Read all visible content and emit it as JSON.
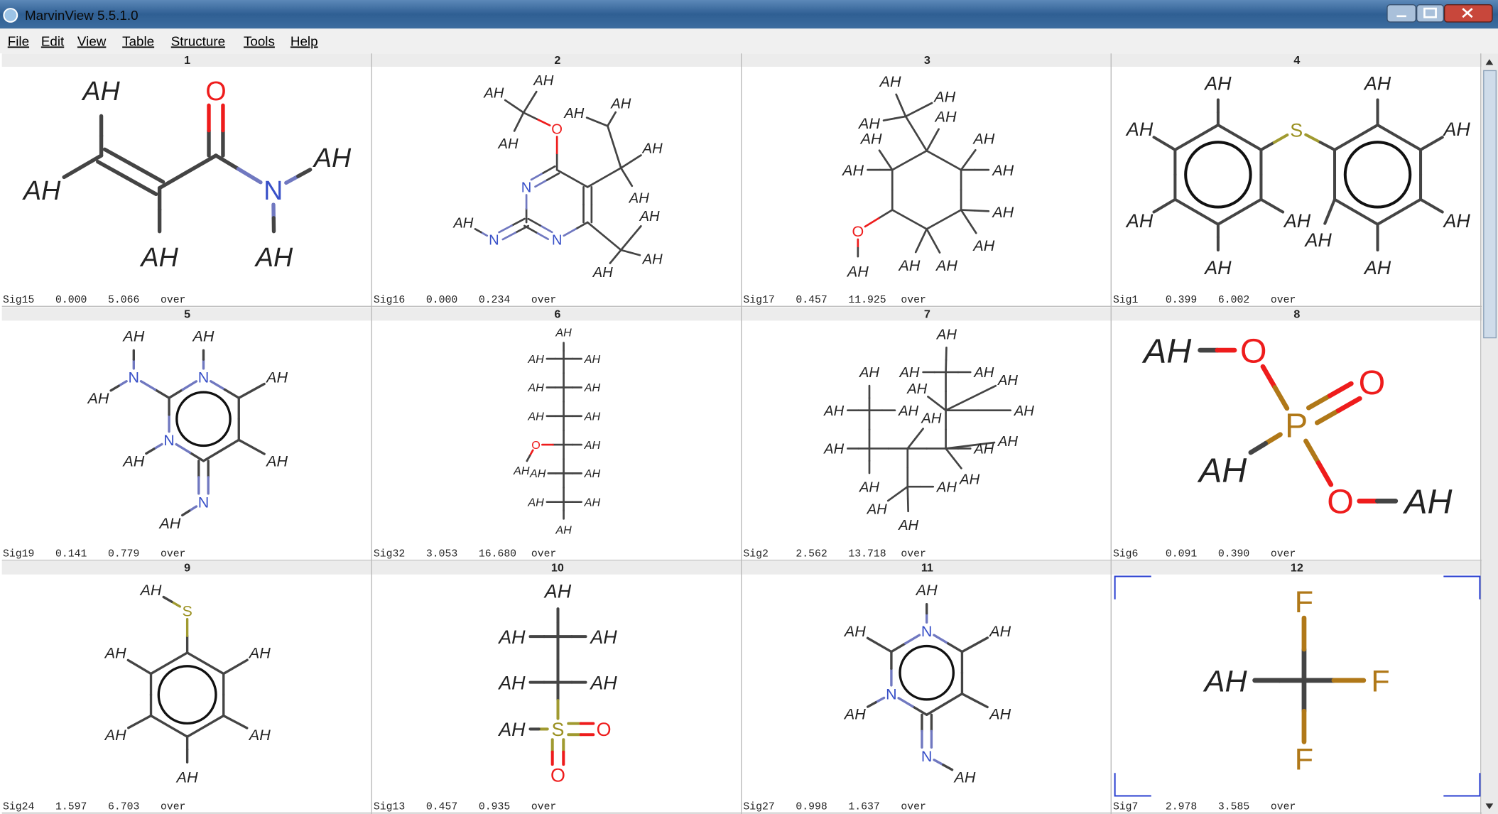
{
  "window": {
    "title": "MarvinView 5.5.1.0"
  },
  "menu": [
    "File",
    "Edit",
    "View",
    "Table",
    "Structure",
    "Tools",
    "Help"
  ],
  "cells": [
    {
      "number": 1,
      "atoms": [
        "AH",
        "O",
        "AH",
        "N",
        "AH",
        "AH",
        "AH"
      ],
      "footer": [
        "Sig15",
        "0.000",
        "5.066",
        "over"
      ]
    },
    {
      "number": 2,
      "atoms": [
        "O",
        "AH",
        "AH",
        "AH",
        "N",
        "N",
        "AH",
        "AH",
        "AH",
        "AH",
        "AH",
        "AH",
        "AH",
        "N",
        "AH"
      ],
      "footer": [
        "Sig16",
        "0.000",
        "0.234",
        "over"
      ]
    },
    {
      "number": 3,
      "atoms": [
        "AH",
        "AH",
        "AH",
        "AH",
        "AH",
        "AH",
        "AH",
        "AH",
        "AH",
        "AH",
        "AH",
        "AH",
        "O",
        "AH"
      ],
      "footer": [
        "Sig17",
        "0.457",
        "11.925",
        "over"
      ]
    },
    {
      "number": 4,
      "atoms": [
        "S",
        "AH",
        "AH",
        "AH",
        "AH",
        "AH",
        "AH",
        "AH",
        "AH",
        "AH",
        "AH"
      ],
      "footer": [
        "Sig1",
        "0.399",
        "6.002",
        "over"
      ]
    },
    {
      "number": 5,
      "atoms": [
        "AH",
        "N",
        "AH",
        "N",
        "AH",
        "AH",
        "AH",
        "N",
        "AH",
        "N",
        "AH"
      ],
      "footer": [
        "Sig19",
        "0.141",
        "0.779",
        "over"
      ]
    },
    {
      "number": 6,
      "atoms": [
        "AH",
        "AH",
        "AH",
        "AH",
        "AH",
        "AH",
        "AH",
        "O",
        "AH",
        "AH",
        "AH",
        "AH",
        "AH",
        "AH",
        "AH"
      ],
      "footer": [
        "Sig32",
        "3.053",
        "16.680",
        "over"
      ]
    },
    {
      "number": 7,
      "atoms": [
        "AH",
        "AH",
        "AH",
        "AH",
        "AH",
        "AH",
        "AH",
        "AH",
        "AH",
        "AH",
        "AH",
        "AH",
        "AH",
        "AH",
        "AH",
        "AH",
        "AH",
        "AH"
      ],
      "footer": [
        "Sig2",
        "2.562",
        "13.718",
        "over"
      ]
    },
    {
      "number": 8,
      "atoms": [
        "AH",
        "O",
        "O",
        "P",
        "AH",
        "O",
        "AH"
      ],
      "footer": [
        "Sig6",
        "0.091",
        "0.390",
        "over"
      ]
    },
    {
      "number": 9,
      "atoms": [
        "AH",
        "S",
        "AH",
        "AH",
        "AH",
        "AH",
        "AH"
      ],
      "footer": [
        "Sig24",
        "1.597",
        "6.703",
        "over"
      ]
    },
    {
      "number": 10,
      "atoms": [
        "AH",
        "AH",
        "AH",
        "AH",
        "AH",
        "AH",
        "S",
        "O",
        "O"
      ],
      "footer": [
        "Sig13",
        "0.457",
        "0.935",
        "over"
      ]
    },
    {
      "number": 11,
      "atoms": [
        "AH",
        "N",
        "AH",
        "AH",
        "AH",
        "N",
        "AH",
        "N",
        "AH"
      ],
      "footer": [
        "Sig27",
        "0.998",
        "1.637",
        "over"
      ]
    },
    {
      "number": 12,
      "atoms": [
        "F",
        "AH",
        "F",
        "F"
      ],
      "footer": [
        "Sig7",
        "2.978",
        "3.585",
        "over"
      ]
    }
  ]
}
